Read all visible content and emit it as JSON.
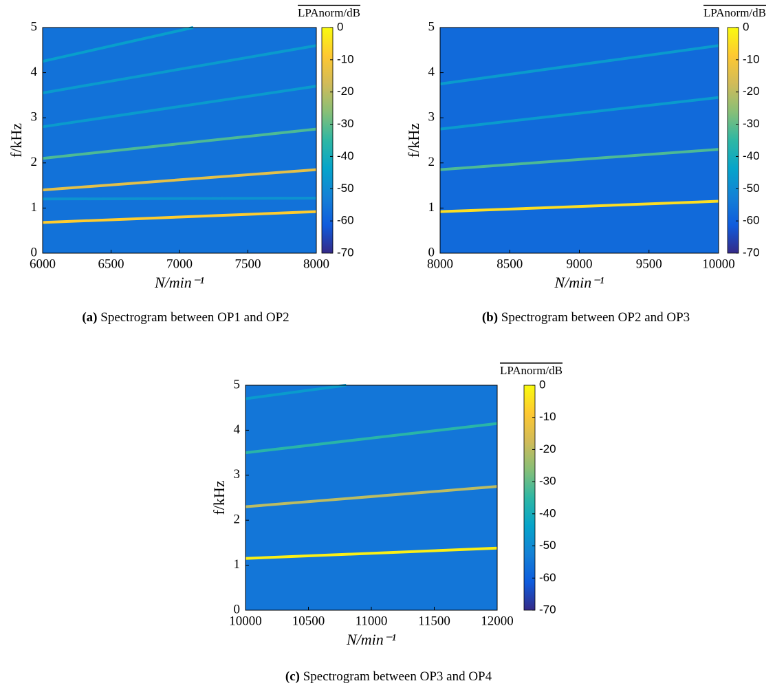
{
  "chart_data": [
    {
      "type": "spectrogram",
      "label": "(a)",
      "caption": "Spectrogram between OP1 and OP2",
      "xlabel": "N/min⁻¹",
      "ylabel": "f/kHz",
      "colorbar_label": "LPAnorm/dB",
      "xlim": [
        6000,
        8000
      ],
      "xticks": [
        6000,
        6500,
        7000,
        7500,
        8000
      ],
      "ylim": [
        0,
        5
      ],
      "yticks": [
        0,
        1,
        2,
        3,
        4,
        5
      ],
      "clim": [
        -70,
        0
      ],
      "cticks": [
        0,
        -10,
        -20,
        -30,
        -40,
        -50,
        -60,
        -70
      ],
      "colormap": [
        "#352a87",
        "#0f5cdd",
        "#1481d6",
        "#06a4ca",
        "#2eb7a4",
        "#87bf77",
        "#d1bb59",
        "#fec832",
        "#f9fb0e"
      ],
      "background_level": -56,
      "lines": [
        {
          "x": [
            6000,
            7100
          ],
          "values": [
            4.25,
            5.0
          ],
          "level": -45
        },
        {
          "x": [
            6000,
            8000
          ],
          "values": [
            3.55,
            4.6
          ],
          "level": -46
        },
        {
          "x": [
            6000,
            8000
          ],
          "values": [
            2.8,
            3.7
          ],
          "level": -46
        },
        {
          "x": [
            6000,
            8000
          ],
          "values": [
            2.1,
            2.75
          ],
          "level": -32
        },
        {
          "x": [
            6000,
            8000
          ],
          "values": [
            1.4,
            1.85
          ],
          "level": -14
        },
        {
          "x": [
            6000,
            8000
          ],
          "values": [
            1.2,
            1.22
          ],
          "level": -48
        },
        {
          "x": [
            6000,
            8000
          ],
          "values": [
            0.68,
            0.92
          ],
          "level": -8
        }
      ]
    },
    {
      "type": "spectrogram",
      "label": "(b)",
      "caption": "Spectrogram between OP2 and OP3",
      "xlabel": "N/min⁻¹",
      "ylabel": "f/kHz",
      "colorbar_label": "LPAnorm/dB",
      "xlim": [
        8000,
        10000
      ],
      "xticks": [
        8000,
        8500,
        9000,
        9500,
        10000
      ],
      "ylim": [
        0,
        5
      ],
      "yticks": [
        0,
        1,
        2,
        3,
        4,
        5
      ],
      "clim": [
        -70,
        0
      ],
      "cticks": [
        0,
        -10,
        -20,
        -30,
        -40,
        -50,
        -60,
        -70
      ],
      "colormap": [
        "#352a87",
        "#0f5cdd",
        "#1481d6",
        "#06a4ca",
        "#2eb7a4",
        "#87bf77",
        "#d1bb59",
        "#fec832",
        "#f9fb0e"
      ],
      "background_level": -58,
      "lines": [
        {
          "x": [
            8000,
            10000
          ],
          "values": [
            3.75,
            4.6
          ],
          "level": -46
        },
        {
          "x": [
            8000,
            10000
          ],
          "values": [
            2.75,
            3.45
          ],
          "level": -46
        },
        {
          "x": [
            8000,
            10000
          ],
          "values": [
            1.85,
            2.3
          ],
          "level": -32
        },
        {
          "x": [
            8000,
            10000
          ],
          "values": [
            0.92,
            1.15
          ],
          "level": -5
        }
      ]
    },
    {
      "type": "spectrogram",
      "label": "(c)",
      "caption": "Spectrogram between OP3 and OP4",
      "xlabel": "N/min⁻¹",
      "ylabel": "f/kHz",
      "colorbar_label": "LPAnorm/dB",
      "xlim": [
        10000,
        12000
      ],
      "xticks": [
        10000,
        10500,
        11000,
        11500,
        12000
      ],
      "ylim": [
        0,
        5
      ],
      "yticks": [
        0,
        1,
        2,
        3,
        4,
        5
      ],
      "clim": [
        -70,
        0
      ],
      "cticks": [
        0,
        -10,
        -20,
        -30,
        -40,
        -50,
        -60,
        -70
      ],
      "colormap": [
        "#352a87",
        "#0f5cdd",
        "#1481d6",
        "#06a4ca",
        "#2eb7a4",
        "#87bf77",
        "#d1bb59",
        "#fec832",
        "#f9fb0e"
      ],
      "background_level": -55,
      "lines": [
        {
          "x": [
            10000,
            10800
          ],
          "values": [
            4.7,
            5.0
          ],
          "level": -46
        },
        {
          "x": [
            10000,
            12000
          ],
          "values": [
            3.5,
            4.15
          ],
          "level": -36
        },
        {
          "x": [
            10000,
            12000
          ],
          "values": [
            2.3,
            2.75
          ],
          "level": -20
        },
        {
          "x": [
            10000,
            12000
          ],
          "values": [
            1.15,
            1.38
          ],
          "level": -2
        }
      ]
    }
  ]
}
